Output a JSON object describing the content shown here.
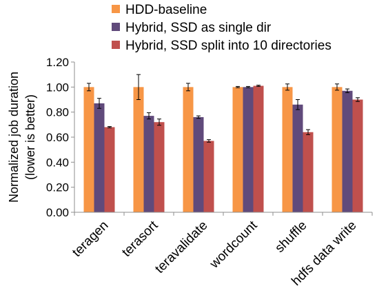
{
  "chart_data": {
    "type": "bar",
    "title": "",
    "xlabel": "",
    "ylabel": "Normalized job duration\n(lower is better)",
    "ylim": [
      0,
      1.2
    ],
    "yticks": [
      "0.00",
      "0.20",
      "0.40",
      "0.60",
      "0.80",
      "1.00",
      "1.20"
    ],
    "categories": [
      "teragen",
      "terasort",
      "teravalidate",
      "wordcount",
      "shuffle",
      "hdfs data write"
    ],
    "series": [
      {
        "name": "HDD-baseline",
        "color": "#F79646",
        "values": [
          1.0,
          1.0,
          1.0,
          1.0,
          1.0,
          1.0
        ],
        "err": [
          0.03,
          0.1,
          0.03,
          0.005,
          0.025,
          0.025
        ]
      },
      {
        "name": "Hybrid, SSD as single dir",
        "color": "#604A7B",
        "values": [
          0.87,
          0.77,
          0.76,
          1.0,
          0.86,
          0.97
        ],
        "err": [
          0.04,
          0.025,
          0.01,
          0.005,
          0.04,
          0.015
        ]
      },
      {
        "name": "Hybrid, SSD split into 10 directories",
        "color": "#C0504D",
        "values": [
          0.68,
          0.72,
          0.57,
          1.01,
          0.64,
          0.9
        ],
        "err": [
          0.005,
          0.025,
          0.01,
          0.005,
          0.02,
          0.015
        ]
      }
    ],
    "grid": false,
    "legend_position": "top"
  }
}
